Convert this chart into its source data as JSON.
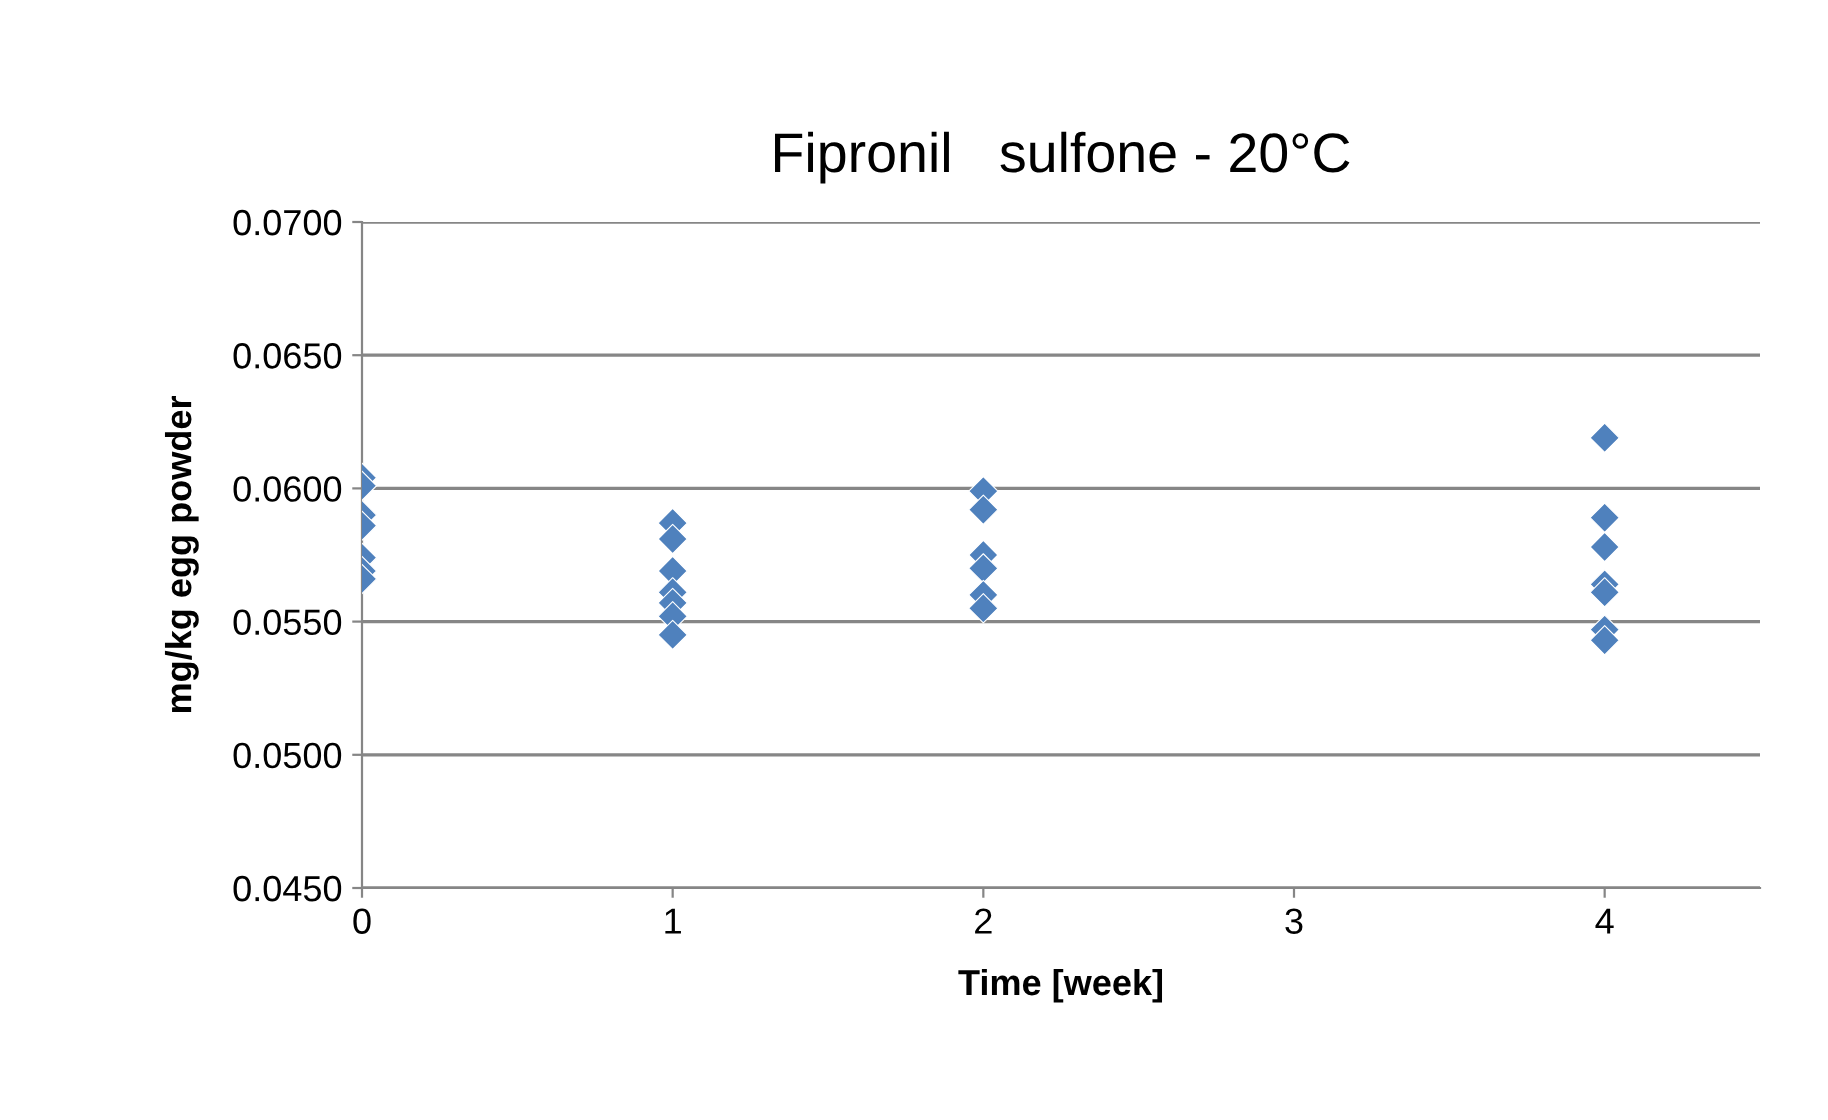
{
  "chart_data": {
    "type": "scatter",
    "title": "Fipronil   sulfone - 20°C",
    "xlabel": "Time [week]",
    "ylabel": "mg/kg egg powder",
    "x": [
      0,
      0,
      0,
      0,
      0,
      0,
      0,
      1,
      1,
      1,
      1,
      1,
      1,
      1,
      2,
      2,
      2,
      2,
      2,
      2,
      4,
      4,
      4,
      4,
      4,
      4,
      4
    ],
    "series": [
      {
        "color": "#4f81bd",
        "values": [
          0.0604,
          0.0601,
          0.059,
          0.0586,
          0.0574,
          0.0569,
          0.0566,
          0.0587,
          0.0581,
          0.0569,
          0.0561,
          0.0557,
          0.0552,
          0.0545,
          0.0599,
          0.0592,
          0.0575,
          0.057,
          0.056,
          0.0555,
          0.0619,
          0.0589,
          0.0578,
          0.0564,
          0.0561,
          0.0547,
          0.0543
        ]
      }
    ],
    "xlim": [
      0,
      4.5
    ],
    "xticks": [
      0,
      1,
      2,
      3,
      4
    ],
    "ylim": [
      0.045,
      0.07
    ],
    "yticks": [
      {
        "value": 0.045,
        "label": "0.0450"
      },
      {
        "value": 0.05,
        "label": "0.0500"
      },
      {
        "value": 0.055,
        "label": "0.0550"
      },
      {
        "value": 0.06,
        "label": "0.0600"
      },
      {
        "value": 0.065,
        "label": "0.0650"
      },
      {
        "value": 0.07,
        "label": "0.0700"
      }
    ],
    "grid": "y",
    "marker": "diamond",
    "legend": false
  }
}
